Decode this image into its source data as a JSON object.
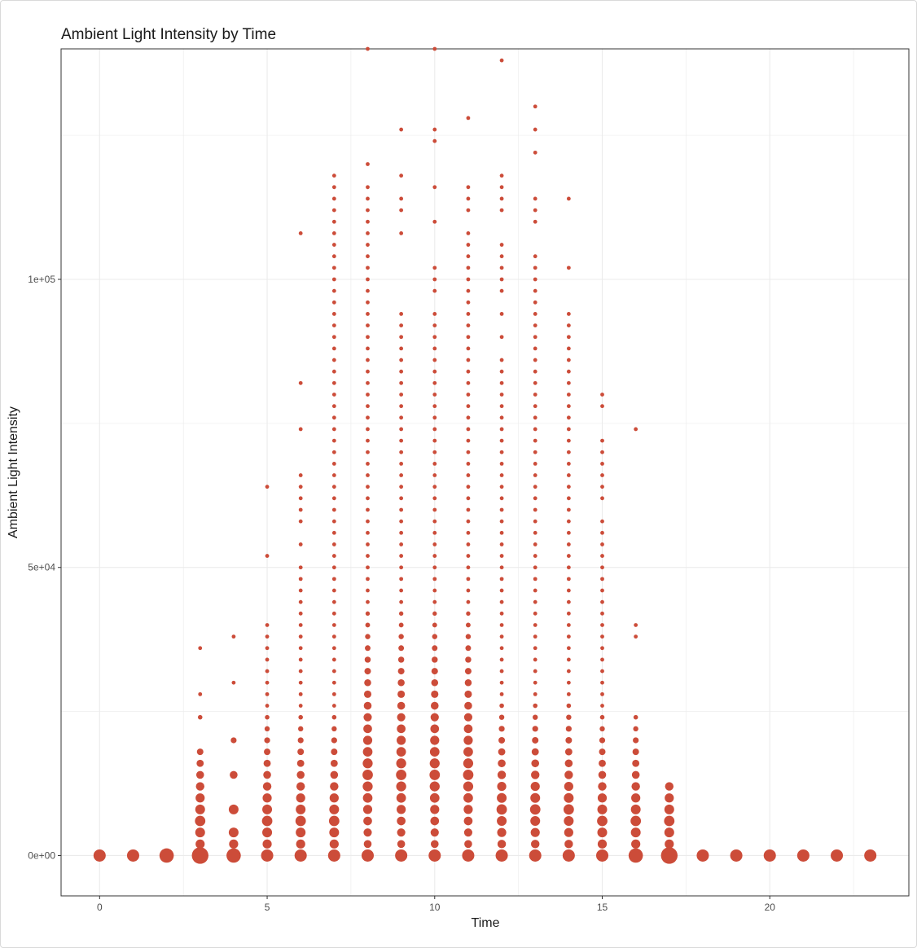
{
  "chart_data": {
    "type": "scatter",
    "title": "Ambient Light Intensity by Time",
    "xlabel": "Time",
    "ylabel": "Ambient Light Intensity",
    "xlim": [
      -1.15,
      24.15
    ],
    "ylim": [
      -7000,
      140000
    ],
    "x_ticks": [
      0,
      5,
      10,
      15,
      20
    ],
    "x_tick_labels": [
      "0",
      "5",
      "10",
      "15",
      "20"
    ],
    "y_ticks": [
      0,
      50000,
      100000
    ],
    "y_tick_labels": [
      "0e+00",
      "5e+04",
      "1e+05"
    ],
    "grid": true,
    "point_color": "#cc4c39",
    "size_encoding": "point size = count of observations",
    "columns": [
      {
        "x": 0,
        "baseline_size": "large",
        "values": []
      },
      {
        "x": 1,
        "baseline_size": "large",
        "values": []
      },
      {
        "x": 2,
        "baseline_size": "xlarge",
        "values": []
      },
      {
        "x": 3,
        "baseline_size": "xxlarge",
        "values": [
          2000,
          4000,
          6000,
          8000,
          10000,
          12000,
          14000,
          16000,
          18000,
          24000,
          28000,
          36000
        ]
      },
      {
        "x": 4,
        "baseline_size": "xlarge",
        "values": [
          2000,
          4000,
          8000,
          14000,
          20000,
          30000,
          38000
        ]
      },
      {
        "x": 5,
        "baseline_size": "large",
        "values": [
          2000,
          4000,
          6000,
          8000,
          10000,
          12000,
          14000,
          16000,
          18000,
          20000,
          22000,
          24000,
          26000,
          28000,
          30000,
          32000,
          34000,
          36000,
          38000,
          40000,
          52000,
          64000
        ]
      },
      {
        "x": 6,
        "baseline_size": "large",
        "values": "2000-50000 step 2000; 54000, 58000, 60000, 62000, 64000, 66000, 74000, 82000, 108000"
      },
      {
        "x": 7,
        "baseline_size": "large",
        "values": "2000-118000 step 2000"
      },
      {
        "x": 8,
        "baseline_size": "large",
        "values": "2000-116000 step 2000; 120000, 140000"
      },
      {
        "x": 9,
        "baseline_size": "large",
        "values": "2000-94000 step 2000; 108000, 112000, 114000, 118000, 126000"
      },
      {
        "x": 10,
        "baseline_size": "large",
        "values": "2000-94000 step 2000; 98000, 100000, 102000, 110000, 116000, 124000, 126000, 140000"
      },
      {
        "x": 11,
        "baseline_size": "large",
        "values": "2000-108000 step 2000; 112000, 114000, 116000, 128000"
      },
      {
        "x": 12,
        "baseline_size": "large",
        "values": "2000-86000 step 2000; 90000, 94000, 98000, 100000, 102000, 104000, 106000, 112000, 114000, 116000, 118000, 138000"
      },
      {
        "x": 13,
        "baseline_size": "large",
        "values": "2000-104000 step 2000; 110000, 112000, 114000, 122000, 126000, 130000"
      },
      {
        "x": 14,
        "baseline_size": "large",
        "values": "2000-94000 step 2000; 102000, 114000"
      },
      {
        "x": 15,
        "baseline_size": "large",
        "values": "2000-58000 step 2000; 62000, 64000, 66000, 68000, 70000, 72000, 78000, 80000"
      },
      {
        "x": 16,
        "baseline_size": "xlarge",
        "values": [
          2000,
          4000,
          6000,
          8000,
          10000,
          12000,
          14000,
          16000,
          18000,
          20000,
          22000,
          24000,
          38000,
          40000,
          74000
        ]
      },
      {
        "x": 17,
        "baseline_size": "xxlarge",
        "values": [
          2000,
          4000,
          6000,
          8000,
          10000,
          12000
        ]
      },
      {
        "x": 18,
        "baseline_size": "large",
        "values": []
      },
      {
        "x": 19,
        "baseline_size": "large",
        "values": []
      },
      {
        "x": 20,
        "baseline_size": "large",
        "values": []
      },
      {
        "x": 21,
        "baseline_size": "large",
        "values": []
      },
      {
        "x": 22,
        "baseline_size": "large",
        "values": []
      },
      {
        "x": 23,
        "baseline_size": "large",
        "values": []
      }
    ]
  }
}
